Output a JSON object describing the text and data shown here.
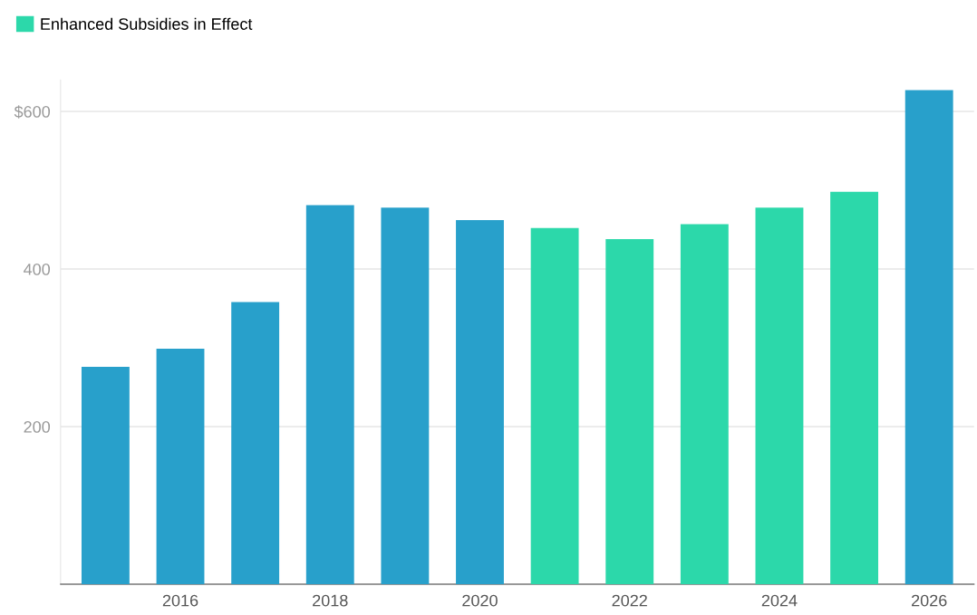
{
  "chart_data": {
    "type": "bar",
    "categories": [
      null,
      "2016",
      null,
      "2018",
      null,
      "2020",
      null,
      "2022",
      null,
      "2024",
      null,
      "2026"
    ],
    "series": [
      {
        "color": "#28a0cb",
        "values": [
          276,
          299,
          358,
          481,
          478,
          462,
          null,
          null,
          null,
          null,
          null,
          627
        ]
      },
      {
        "name": "Enhanced Subsidies in Effect",
        "color": "#2cd8aa",
        "values": [
          null,
          null,
          null,
          null,
          null,
          null,
          452,
          438,
          457,
          478,
          498,
          null
        ]
      }
    ],
    "ylim": [
      0,
      640
    ],
    "yticks": [
      {
        "value": 200,
        "label": "200"
      },
      {
        "value": 400,
        "label": "400"
      },
      {
        "value": 600,
        "label": "$600"
      }
    ],
    "grid": "y",
    "legend": "top left"
  }
}
